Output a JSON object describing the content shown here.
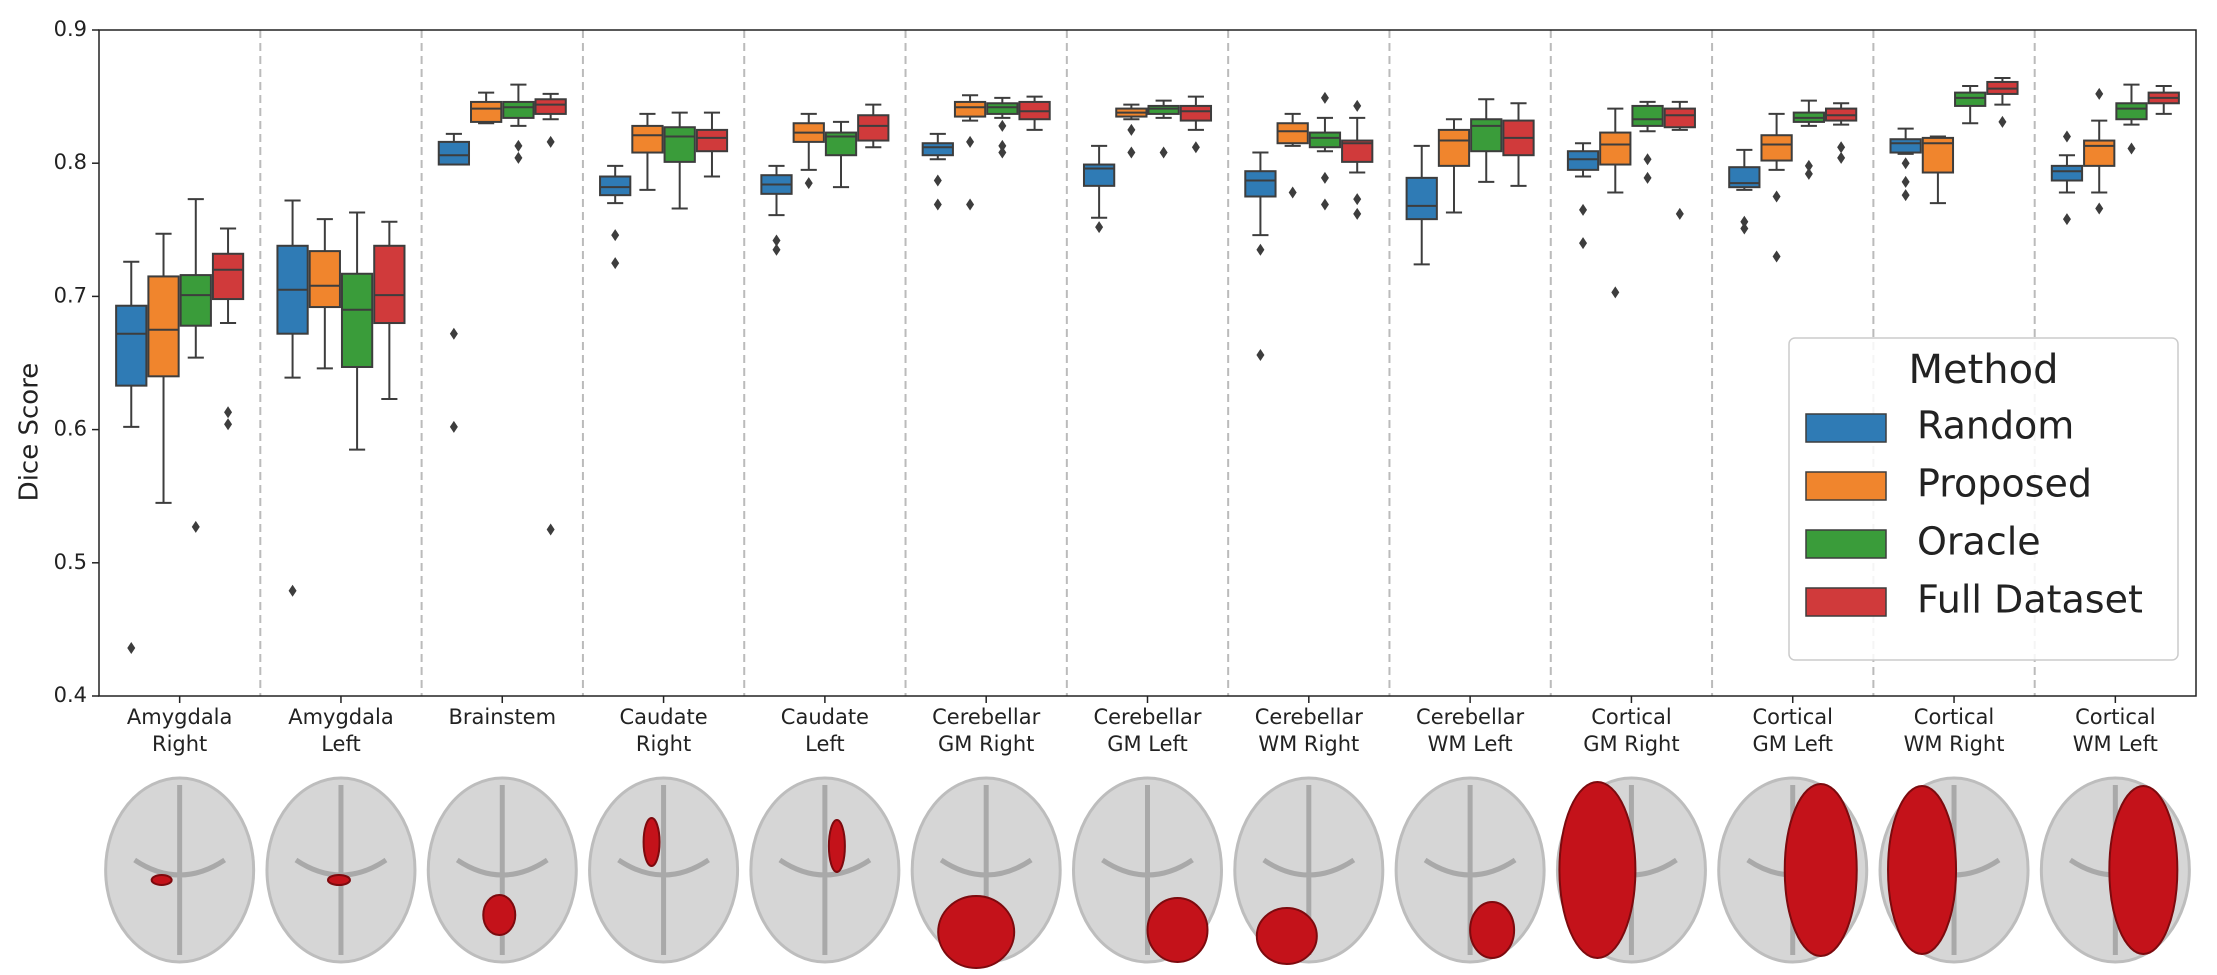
{
  "chart_data": {
    "type": "box",
    "y_label": "Dice Score",
    "categories": [
      [
        "Amygdala",
        "Right"
      ],
      [
        "Amygdala",
        "Left"
      ],
      [
        "Brainstem"
      ],
      [
        "Caudate",
        "Right"
      ],
      [
        "Caudate",
        "Left"
      ],
      [
        "Cerebellar",
        "GM Right"
      ],
      [
        "Cerebellar",
        "GM Left"
      ],
      [
        "Cerebellar",
        "WM Right"
      ],
      [
        "Cerebellar",
        "WM Left"
      ],
      [
        "Cortical",
        "GM Right"
      ],
      [
        "Cortical",
        "GM Left"
      ],
      [
        "Cortical",
        "WM Right"
      ],
      [
        "Cortical",
        "WM Left"
      ]
    ],
    "ylim": [
      0.4,
      0.9
    ],
    "yticks": [
      0.4,
      0.5,
      0.6,
      0.7,
      0.8,
      0.9
    ],
    "legend": {
      "title": "Method",
      "position": "lower right"
    },
    "series": [
      {
        "name": "Random",
        "color": "#2f7bb5",
        "values": [
          {
            "min": 0.602,
            "q1": 0.633,
            "median": 0.672,
            "q3": 0.693,
            "max": 0.726,
            "outliers": [
              0.436
            ]
          },
          {
            "min": 0.639,
            "q1": 0.672,
            "median": 0.705,
            "q3": 0.738,
            "max": 0.772,
            "outliers": [
              0.479
            ]
          },
          {
            "min": 0.799,
            "q1": 0.799,
            "median": 0.806,
            "q3": 0.816,
            "max": 0.822,
            "outliers": [
              0.672,
              0.602
            ]
          },
          {
            "min": 0.77,
            "q1": 0.776,
            "median": 0.782,
            "q3": 0.79,
            "max": 0.798,
            "outliers": [
              0.746,
              0.725
            ]
          },
          {
            "min": 0.761,
            "q1": 0.777,
            "median": 0.784,
            "q3": 0.791,
            "max": 0.798,
            "outliers": [
              0.742,
              0.735
            ]
          },
          {
            "min": 0.803,
            "q1": 0.806,
            "median": 0.812,
            "q3": 0.815,
            "max": 0.822,
            "outliers": [
              0.787,
              0.769
            ]
          },
          {
            "min": 0.759,
            "q1": 0.783,
            "median": 0.796,
            "q3": 0.799,
            "max": 0.813,
            "outliers": [
              0.752
            ]
          },
          {
            "min": 0.746,
            "q1": 0.775,
            "median": 0.787,
            "q3": 0.794,
            "max": 0.808,
            "outliers": [
              0.735,
              0.656
            ]
          },
          {
            "min": 0.724,
            "q1": 0.758,
            "median": 0.768,
            "q3": 0.789,
            "max": 0.813
          },
          {
            "min": 0.79,
            "q1": 0.795,
            "median": 0.803,
            "q3": 0.809,
            "max": 0.815,
            "outliers": [
              0.765,
              0.74
            ]
          },
          {
            "min": 0.78,
            "q1": 0.782,
            "median": 0.785,
            "q3": 0.797,
            "max": 0.81,
            "outliers": [
              0.756,
              0.751
            ]
          },
          {
            "min": 0.807,
            "q1": 0.808,
            "median": 0.815,
            "q3": 0.818,
            "max": 0.826,
            "outliers": [
              0.8,
              0.786,
              0.776
            ]
          },
          {
            "min": 0.778,
            "q1": 0.787,
            "median": 0.794,
            "q3": 0.798,
            "max": 0.806,
            "outliers": [
              0.82,
              0.758
            ]
          }
        ]
      },
      {
        "name": "Proposed",
        "color": "#f0852d",
        "values": [
          {
            "min": 0.545,
            "q1": 0.64,
            "median": 0.675,
            "q3": 0.715,
            "max": 0.747
          },
          {
            "min": 0.646,
            "q1": 0.692,
            "median": 0.708,
            "q3": 0.734,
            "max": 0.758
          },
          {
            "min": 0.83,
            "q1": 0.831,
            "median": 0.841,
            "q3": 0.846,
            "max": 0.853
          },
          {
            "min": 0.78,
            "q1": 0.808,
            "median": 0.821,
            "q3": 0.828,
            "max": 0.837
          },
          {
            "min": 0.795,
            "q1": 0.816,
            "median": 0.823,
            "q3": 0.83,
            "max": 0.837,
            "outliers": [
              0.785
            ]
          },
          {
            "min": 0.832,
            "q1": 0.835,
            "median": 0.842,
            "q3": 0.846,
            "max": 0.851,
            "outliers": [
              0.816,
              0.769
            ]
          },
          {
            "min": 0.833,
            "q1": 0.835,
            "median": 0.838,
            "q3": 0.841,
            "max": 0.844,
            "outliers": [
              0.825,
              0.808
            ]
          },
          {
            "min": 0.813,
            "q1": 0.815,
            "median": 0.824,
            "q3": 0.83,
            "max": 0.837,
            "outliers": [
              0.778
            ]
          },
          {
            "min": 0.763,
            "q1": 0.798,
            "median": 0.817,
            "q3": 0.825,
            "max": 0.833
          },
          {
            "min": 0.778,
            "q1": 0.799,
            "median": 0.814,
            "q3": 0.823,
            "max": 0.841,
            "outliers": [
              0.703
            ]
          },
          {
            "min": 0.795,
            "q1": 0.802,
            "median": 0.814,
            "q3": 0.821,
            "max": 0.837,
            "outliers": [
              0.775,
              0.73
            ]
          },
          {
            "min": 0.77,
            "q1": 0.793,
            "median": 0.815,
            "q3": 0.819,
            "max": 0.82
          },
          {
            "min": 0.778,
            "q1": 0.798,
            "median": 0.813,
            "q3": 0.817,
            "max": 0.832,
            "outliers": [
              0.852,
              0.766
            ]
          }
        ]
      },
      {
        "name": "Oracle",
        "color": "#3a9c3a",
        "values": [
          {
            "min": 0.654,
            "q1": 0.678,
            "median": 0.701,
            "q3": 0.716,
            "max": 0.773,
            "outliers": [
              0.527
            ]
          },
          {
            "min": 0.585,
            "q1": 0.647,
            "median": 0.69,
            "q3": 0.717,
            "max": 0.763
          },
          {
            "min": 0.828,
            "q1": 0.834,
            "median": 0.842,
            "q3": 0.846,
            "max": 0.859,
            "outliers": [
              0.813,
              0.804
            ]
          },
          {
            "min": 0.766,
            "q1": 0.801,
            "median": 0.82,
            "q3": 0.827,
            "max": 0.838
          },
          {
            "min": 0.782,
            "q1": 0.806,
            "median": 0.82,
            "q3": 0.823,
            "max": 0.831
          },
          {
            "min": 0.834,
            "q1": 0.837,
            "median": 0.842,
            "q3": 0.845,
            "max": 0.849,
            "outliers": [
              0.828,
              0.813,
              0.808
            ]
          },
          {
            "min": 0.834,
            "q1": 0.837,
            "median": 0.841,
            "q3": 0.843,
            "max": 0.847,
            "outliers": [
              0.808
            ]
          },
          {
            "min": 0.809,
            "q1": 0.812,
            "median": 0.819,
            "q3": 0.823,
            "max": 0.834,
            "outliers": [
              0.849,
              0.789,
              0.769
            ]
          },
          {
            "min": 0.786,
            "q1": 0.809,
            "median": 0.828,
            "q3": 0.833,
            "max": 0.848
          },
          {
            "min": 0.824,
            "q1": 0.828,
            "median": 0.833,
            "q3": 0.843,
            "max": 0.846,
            "outliers": [
              0.803,
              0.789
            ]
          },
          {
            "min": 0.828,
            "q1": 0.831,
            "median": 0.834,
            "q3": 0.838,
            "max": 0.847,
            "outliers": [
              0.798,
              0.792
            ]
          },
          {
            "min": 0.83,
            "q1": 0.843,
            "median": 0.849,
            "q3": 0.853,
            "max": 0.858
          },
          {
            "min": 0.829,
            "q1": 0.833,
            "median": 0.841,
            "q3": 0.845,
            "max": 0.859,
            "outliers": [
              0.811
            ]
          }
        ]
      },
      {
        "name": "Full Dataset",
        "color": "#d03a3b",
        "values": [
          {
            "min": 0.68,
            "q1": 0.698,
            "median": 0.72,
            "q3": 0.732,
            "max": 0.751,
            "outliers": [
              0.613,
              0.604
            ]
          },
          {
            "min": 0.623,
            "q1": 0.68,
            "median": 0.701,
            "q3": 0.738,
            "max": 0.756
          },
          {
            "min": 0.833,
            "q1": 0.837,
            "median": 0.844,
            "q3": 0.848,
            "max": 0.852,
            "outliers": [
              0.816,
              0.525
            ]
          },
          {
            "min": 0.79,
            "q1": 0.809,
            "median": 0.819,
            "q3": 0.825,
            "max": 0.838
          },
          {
            "min": 0.812,
            "q1": 0.817,
            "median": 0.828,
            "q3": 0.836,
            "max": 0.844
          },
          {
            "min": 0.825,
            "q1": 0.833,
            "median": 0.839,
            "q3": 0.846,
            "max": 0.85
          },
          {
            "min": 0.825,
            "q1": 0.832,
            "median": 0.839,
            "q3": 0.843,
            "max": 0.85,
            "outliers": [
              0.812
            ]
          },
          {
            "min": 0.793,
            "q1": 0.801,
            "median": 0.815,
            "q3": 0.817,
            "max": 0.834,
            "outliers": [
              0.843,
              0.773,
              0.762
            ]
          },
          {
            "min": 0.783,
            "q1": 0.806,
            "median": 0.819,
            "q3": 0.832,
            "max": 0.845
          },
          {
            "min": 0.825,
            "q1": 0.827,
            "median": 0.836,
            "q3": 0.841,
            "max": 0.846,
            "outliers": [
              0.762
            ]
          },
          {
            "min": 0.829,
            "q1": 0.832,
            "median": 0.836,
            "q3": 0.841,
            "max": 0.845,
            "outliers": [
              0.812,
              0.804
            ]
          },
          {
            "min": 0.844,
            "q1": 0.852,
            "median": 0.856,
            "q3": 0.861,
            "max": 0.864,
            "outliers": [
              0.831
            ]
          },
          {
            "min": 0.837,
            "q1": 0.845,
            "median": 0.849,
            "q3": 0.853,
            "max": 0.858
          }
        ]
      }
    ]
  }
}
